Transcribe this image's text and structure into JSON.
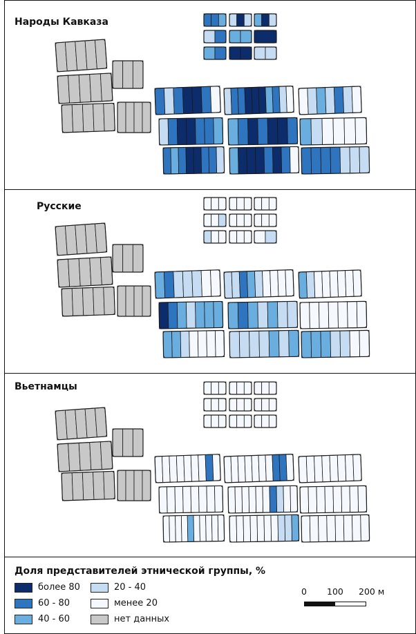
{
  "panels": [
    {
      "title": "Народы Кавказа",
      "key": "caucasus"
    },
    {
      "title": "Русские",
      "key": "russian"
    },
    {
      "title": "Вьетнамцы",
      "key": "vietnamese"
    }
  ],
  "legend": {
    "title": "Доля представителей этнической группы, %",
    "items": [
      {
        "label": "более 80",
        "color": "#0c2c6b"
      },
      {
        "label": "60 - 80",
        "color": "#2f74bf"
      },
      {
        "label": "40 - 60",
        "color": "#6aaee0"
      },
      {
        "label": "20 - 40",
        "color": "#c5dcf2"
      },
      {
        "label": "менее 20",
        "color": "#f5f9fd"
      },
      {
        "label": "нет данных",
        "color": "#c8c8c8"
      }
    ]
  },
  "scale_bar": {
    "labels": [
      "0",
      "100",
      "200 м"
    ]
  },
  "class_colors": [
    "#f5f9fd",
    "#c5dcf2",
    "#6aaee0",
    "#2f74bf",
    "#0c2c6b",
    "#c8c8c8"
  ],
  "stroke_color": "#1a1a1a"
}
